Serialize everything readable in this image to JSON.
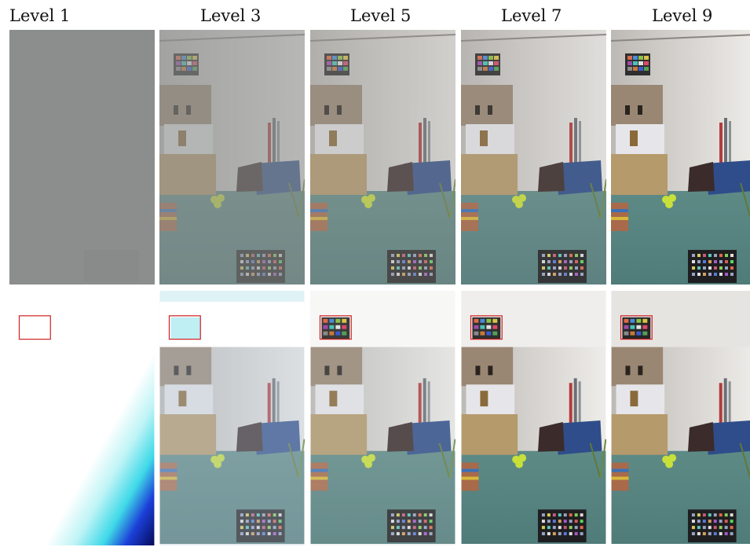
{
  "column_labels": [
    "Level 1",
    "Level 3",
    "Level 5",
    "Level 7",
    "Level 9"
  ]
}
